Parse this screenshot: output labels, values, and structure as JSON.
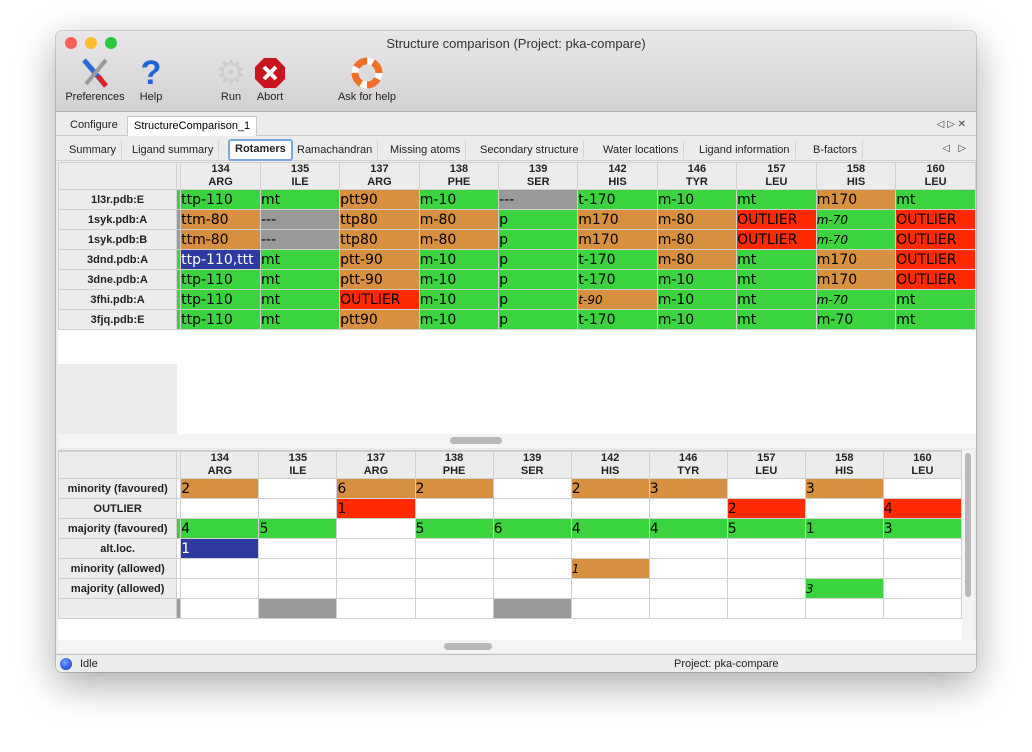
{
  "window": {
    "title": "Structure comparison (Project: pka-compare)"
  },
  "toolbar": {
    "preferences": "Preferences",
    "help": "Help",
    "run": "Run",
    "abort": "Abort",
    "ask_for_help": "Ask for help"
  },
  "outer_tabs": [
    {
      "label": "Configure"
    },
    {
      "label": "StructureComparison_1",
      "active": true
    }
  ],
  "inner_tabs": [
    {
      "label": "Summary"
    },
    {
      "label": "Ligand summary"
    },
    {
      "label": "Rotamers",
      "active": true
    },
    {
      "label": "Ramachandran"
    },
    {
      "label": "Missing atoms"
    },
    {
      "label": "Secondary structure"
    },
    {
      "label": "Water locations"
    },
    {
      "label": "Ligand information"
    },
    {
      "label": "B-factors"
    }
  ],
  "colors": {
    "green": "#3bd43f",
    "orange": "#d69040",
    "red": "#ff2a00",
    "gray": "#999999",
    "blue": "#2e3a9f"
  },
  "columns": [
    {
      "num": "134",
      "res": "ARG"
    },
    {
      "num": "135",
      "res": "ILE"
    },
    {
      "num": "137",
      "res": "ARG"
    },
    {
      "num": "138",
      "res": "PHE"
    },
    {
      "num": "139",
      "res": "SER"
    },
    {
      "num": "142",
      "res": "HIS"
    },
    {
      "num": "146",
      "res": "TYR"
    },
    {
      "num": "157",
      "res": "LEU"
    },
    {
      "num": "158",
      "res": "HIS"
    },
    {
      "num": "160",
      "res": "LEU"
    }
  ],
  "rotamer_table": {
    "rows": [
      {
        "label": "1l3r.pdb:E",
        "strip": "g",
        "cells": [
          [
            "ttp-110",
            "g"
          ],
          [
            "mt",
            "g"
          ],
          [
            "ptt90",
            "o"
          ],
          [
            "m-10",
            "g"
          ],
          [
            "---",
            "x"
          ],
          [
            "t-170",
            "g"
          ],
          [
            "m-10",
            "g"
          ],
          [
            "mt",
            "g"
          ],
          [
            "m170",
            "o"
          ],
          [
            "mt",
            "g"
          ]
        ]
      },
      {
        "label": "1syk.pdb:A",
        "strip": "x",
        "cells": [
          [
            "ttm-80",
            "o"
          ],
          [
            "---",
            "x"
          ],
          [
            "ttp80",
            "o"
          ],
          [
            "m-80",
            "o"
          ],
          [
            "p",
            "g"
          ],
          [
            "m170",
            "o"
          ],
          [
            "m-80",
            "o"
          ],
          [
            "OUTLIER",
            "r"
          ],
          [
            "m-70",
            "g",
            "i"
          ],
          [
            "OUTLIER",
            "r"
          ]
        ]
      },
      {
        "label": "1syk.pdb:B",
        "strip": "x",
        "cells": [
          [
            "ttm-80",
            "o"
          ],
          [
            "---",
            "x"
          ],
          [
            "ttp80",
            "o"
          ],
          [
            "m-80",
            "o"
          ],
          [
            "p",
            "g"
          ],
          [
            "m170",
            "o"
          ],
          [
            "m-80",
            "o"
          ],
          [
            "OUTLIER",
            "r"
          ],
          [
            "m-70",
            "g",
            "i"
          ],
          [
            "OUTLIER",
            "r"
          ]
        ]
      },
      {
        "label": "3dnd.pdb:A",
        "strip": "g",
        "cells": [
          [
            "ttp-110,ttt",
            "b"
          ],
          [
            "mt",
            "g"
          ],
          [
            "ptt-90",
            "o"
          ],
          [
            "m-10",
            "g"
          ],
          [
            "p",
            "g"
          ],
          [
            "t-170",
            "g"
          ],
          [
            "m-80",
            "o"
          ],
          [
            "mt",
            "g"
          ],
          [
            "m170",
            "o"
          ],
          [
            "OUTLIER",
            "r"
          ]
        ]
      },
      {
        "label": "3dne.pdb:A",
        "strip": "g",
        "cells": [
          [
            "ttp-110",
            "g"
          ],
          [
            "mt",
            "g"
          ],
          [
            "ptt-90",
            "o"
          ],
          [
            "m-10",
            "g"
          ],
          [
            "p",
            "g"
          ],
          [
            "t-170",
            "g"
          ],
          [
            "m-10",
            "g"
          ],
          [
            "mt",
            "g"
          ],
          [
            "m170",
            "o"
          ],
          [
            "OUTLIER",
            "r"
          ]
        ]
      },
      {
        "label": "3fhi.pdb:A",
        "strip": "g",
        "cells": [
          [
            "ttp-110",
            "g"
          ],
          [
            "mt",
            "g"
          ],
          [
            "OUTLIER",
            "r"
          ],
          [
            "m-10",
            "g"
          ],
          [
            "p",
            "g"
          ],
          [
            "t-90",
            "o",
            "i"
          ],
          [
            "m-10",
            "g"
          ],
          [
            "mt",
            "g"
          ],
          [
            "m-70",
            "g",
            "i"
          ],
          [
            "mt",
            "g"
          ]
        ]
      },
      {
        "label": "3fjq.pdb:E",
        "strip": "g",
        "cells": [
          [
            "ttp-110",
            "g"
          ],
          [
            "mt",
            "g"
          ],
          [
            "ptt90",
            "o"
          ],
          [
            "m-10",
            "g"
          ],
          [
            "p",
            "g"
          ],
          [
            "t-170",
            "g"
          ],
          [
            "m-10",
            "g"
          ],
          [
            "mt",
            "g"
          ],
          [
            "m-70",
            "g"
          ],
          [
            "mt",
            "g"
          ]
        ]
      }
    ]
  },
  "summary_table": {
    "rows": [
      {
        "label": "minority (favoured)",
        "strip": "",
        "cells": [
          [
            "2",
            "o"
          ],
          [
            "",
            ""
          ],
          [
            "6",
            "o"
          ],
          [
            "2",
            "o"
          ],
          [
            "",
            ""
          ],
          [
            "2",
            "o"
          ],
          [
            "3",
            "o"
          ],
          [
            "",
            ""
          ],
          [
            "3",
            "o"
          ],
          [
            "",
            ""
          ]
        ]
      },
      {
        "label": "OUTLIER",
        "strip": "",
        "cells": [
          [
            "",
            ""
          ],
          [
            "",
            ""
          ],
          [
            "1",
            "r"
          ],
          [
            "",
            ""
          ],
          [
            "",
            ""
          ],
          [
            "",
            ""
          ],
          [
            "",
            ""
          ],
          [
            "2",
            "r"
          ],
          [
            "",
            ""
          ],
          [
            "4",
            "r"
          ]
        ]
      },
      {
        "label": "majority (favoured)",
        "strip": "g",
        "cells": [
          [
            "4",
            "g"
          ],
          [
            "5",
            "g"
          ],
          [
            "",
            ""
          ],
          [
            "5",
            "g"
          ],
          [
            "6",
            "g"
          ],
          [
            "4",
            "g"
          ],
          [
            "4",
            "g"
          ],
          [
            "5",
            "g"
          ],
          [
            "1",
            "g"
          ],
          [
            "3",
            "g"
          ]
        ]
      },
      {
        "label": "alt.loc.",
        "strip": "",
        "cells": [
          [
            "1",
            "b"
          ],
          [
            "",
            ""
          ],
          [
            "",
            ""
          ],
          [
            "",
            ""
          ],
          [
            "",
            ""
          ],
          [
            "",
            ""
          ],
          [
            "",
            ""
          ],
          [
            "",
            ""
          ],
          [
            "",
            ""
          ],
          [
            "",
            ""
          ]
        ]
      },
      {
        "label": "minority (allowed)",
        "strip": "",
        "cells": [
          [
            "",
            ""
          ],
          [
            "",
            ""
          ],
          [
            "",
            ""
          ],
          [
            "",
            ""
          ],
          [
            "",
            ""
          ],
          [
            "1",
            "o",
            "i"
          ],
          [
            "",
            ""
          ],
          [
            "",
            ""
          ],
          [
            "",
            ""
          ],
          [
            "",
            ""
          ]
        ]
      },
      {
        "label": "majority (allowed)",
        "strip": "",
        "cells": [
          [
            "",
            ""
          ],
          [
            "",
            ""
          ],
          [
            "",
            ""
          ],
          [
            "",
            ""
          ],
          [
            "",
            ""
          ],
          [
            "",
            ""
          ],
          [
            "",
            ""
          ],
          [
            "",
            ""
          ],
          [
            "3",
            "g",
            "i"
          ],
          [
            "",
            ""
          ]
        ]
      },
      {
        "label": "",
        "strip": "x",
        "cells": [
          [
            "",
            ""
          ],
          [
            "",
            "x"
          ],
          [
            "",
            ""
          ],
          [
            "",
            ""
          ],
          [
            "",
            "x"
          ],
          [
            "",
            ""
          ],
          [
            "",
            ""
          ],
          [
            "",
            ""
          ],
          [
            "",
            ""
          ],
          [
            "",
            ""
          ]
        ]
      }
    ]
  },
  "status": {
    "state": "Idle",
    "project": "Project: pka-compare"
  }
}
